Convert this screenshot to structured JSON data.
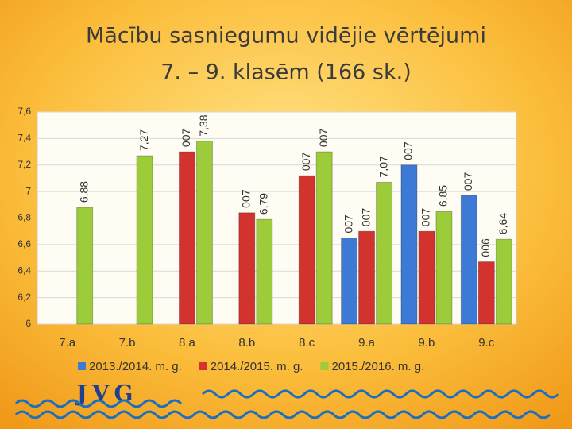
{
  "chart_data": {
    "type": "bar",
    "title": "Mācību sasniegumu vidējie vērtējumi",
    "subtitle": "7. – 9.  klasēm (166 sk.)",
    "categories": [
      "7.a",
      "7.b",
      "8.a",
      "8.b",
      "8.c",
      "9.a",
      "9.b",
      "9.c"
    ],
    "series": [
      {
        "name": "2013./2014. m. g.",
        "color": "#3d7ad6",
        "values": [
          null,
          null,
          null,
          null,
          null,
          6.65,
          7.2,
          6.97
        ],
        "value_labels": [
          null,
          null,
          null,
          null,
          null,
          "007",
          "007",
          "007"
        ]
      },
      {
        "name": "2014./2015. m. g.",
        "color": "#d2332e",
        "values": [
          null,
          null,
          7.3,
          6.84,
          7.12,
          6.7,
          6.7,
          6.47
        ],
        "value_labels": [
          null,
          null,
          "007",
          "007",
          "007",
          "007",
          "007",
          "006"
        ]
      },
      {
        "name": "2015./2016. m. g.",
        "color": "#9ccc3a",
        "values": [
          6.88,
          7.27,
          7.38,
          6.79,
          7.3,
          7.07,
          6.85,
          6.64
        ],
        "value_labels": [
          "6,88",
          "7,27",
          "7,38",
          "6,79",
          "007",
          "7,07",
          "6,85",
          "6,64"
        ]
      }
    ],
    "ylim": [
      6,
      7.6
    ],
    "yticks": [
      6,
      {
        "value": 6.2,
        "label": "6,2"
      },
      {
        "value": 6.4,
        "label": "6,4"
      },
      {
        "value": 6.6,
        "label": "6,6"
      },
      {
        "value": 6.8,
        "label": "6,8"
      },
      7,
      {
        "value": 7.2,
        "label": "7,2"
      },
      {
        "value": 7.4,
        "label": "7,4"
      },
      {
        "value": 7.6,
        "label": "7,6"
      }
    ],
    "grid": true,
    "legend": "bottom"
  },
  "logo": "JVG"
}
